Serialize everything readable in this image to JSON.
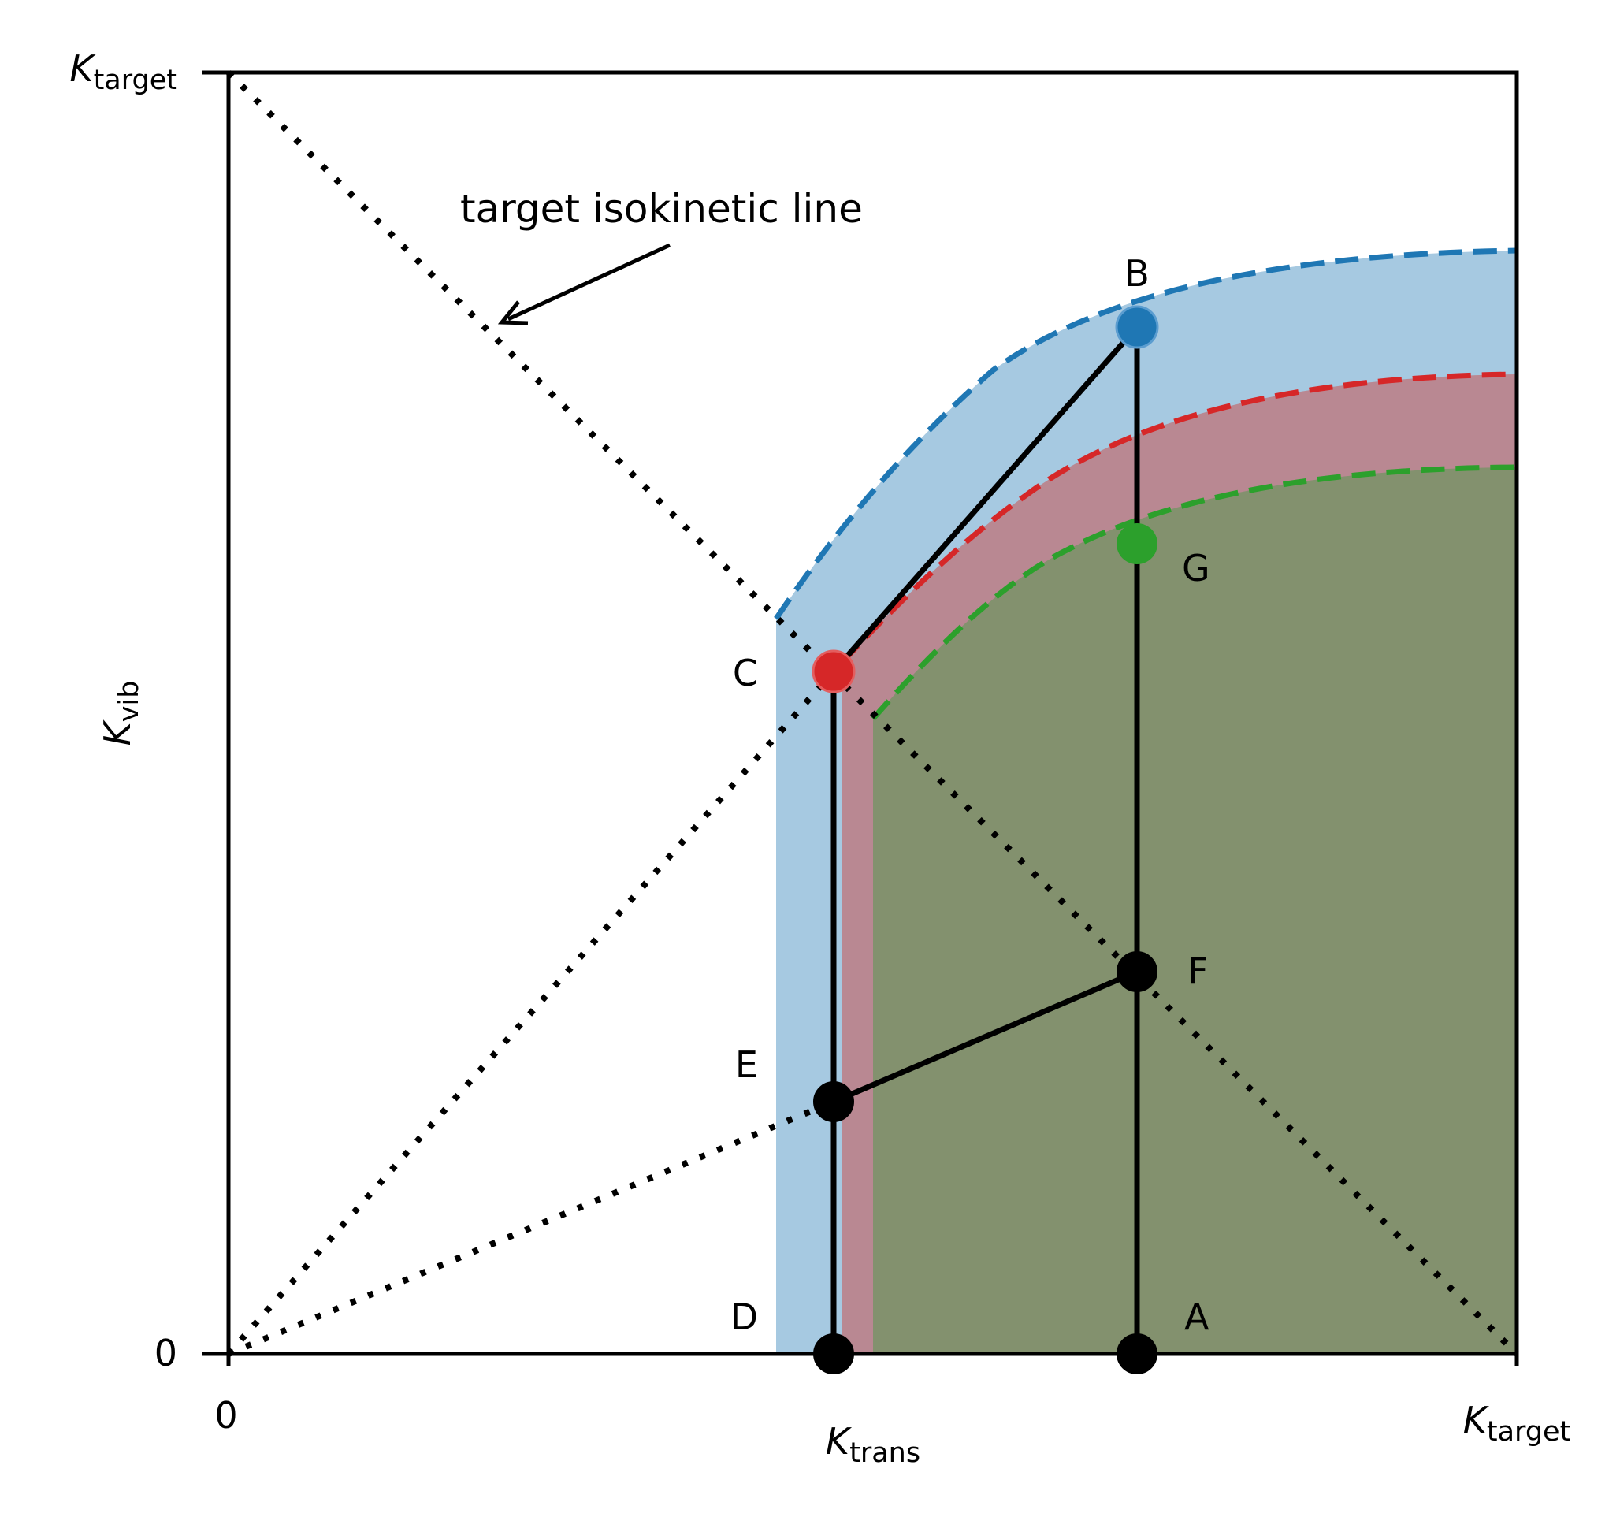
{
  "axes": {
    "x_label": {
      "symbol": "K",
      "sub": "trans"
    },
    "y_label": {
      "symbol": "K",
      "sub": "vib"
    },
    "x_ticks": [
      {
        "text": "0"
      },
      {
        "symbol": "K",
        "sub": "target"
      }
    ],
    "y_ticks": [
      {
        "text": "0"
      },
      {
        "symbol": "K",
        "sub": "target"
      }
    ]
  },
  "annotation": {
    "text": "target isokinetic line"
  },
  "points": {
    "A": {
      "label": "A",
      "color": "#000000"
    },
    "B": {
      "label": "B",
      "color": "#1f77b4"
    },
    "C": {
      "label": "C",
      "color": "#d62728"
    },
    "D": {
      "label": "D",
      "color": "#000000"
    },
    "E": {
      "label": "E",
      "color": "#000000"
    },
    "F": {
      "label": "F",
      "color": "#000000"
    },
    "G": {
      "label": "G",
      "color": "#2ca02c"
    }
  },
  "colors": {
    "blue": "#1f77b4",
    "red": "#d62728",
    "green": "#2ca02c",
    "blue_fill": "#a6c9e1",
    "red_fill": "#b98892",
    "green_fill": "#83916e"
  }
}
